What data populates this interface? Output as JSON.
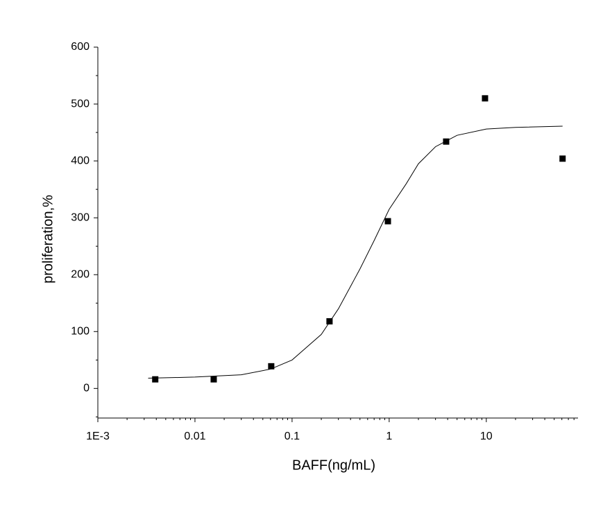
{
  "chart_data": {
    "type": "scatter",
    "xlabel": "BAFF(ng/mL)",
    "ylabel": "proliferation,%",
    "xscale": "log",
    "xlim": [
      0.001,
      88
    ],
    "ylim": [
      -52,
      600
    ],
    "xticks": [
      {
        "value": 0.001,
        "label": "1E-3"
      },
      0.01,
      0.1,
      1,
      10
    ],
    "yticks": [
      0,
      100,
      200,
      300,
      400,
      500,
      600
    ],
    "y_minor_ticks": [
      -50,
      50,
      150,
      250,
      350,
      450,
      550
    ],
    "color": "#000000",
    "series": [
      {
        "x": [
          0.0039,
          0.0156,
          0.061,
          0.243,
          0.97,
          3.86,
          9.7,
          61
        ],
        "values": [
          16,
          16,
          39,
          118,
          294,
          434,
          510,
          404
        ]
      }
    ],
    "fit": {
      "x": [
        0.0033,
        0.01,
        0.03,
        0.06,
        0.1,
        0.2,
        0.3,
        0.5,
        0.7,
        1,
        1.5,
        2,
        3,
        5,
        10,
        20,
        61
      ],
      "values": [
        18,
        20,
        24,
        34,
        50,
        95,
        140,
        210,
        260,
        315,
        360,
        395,
        425,
        445,
        456,
        459,
        461
      ]
    }
  }
}
